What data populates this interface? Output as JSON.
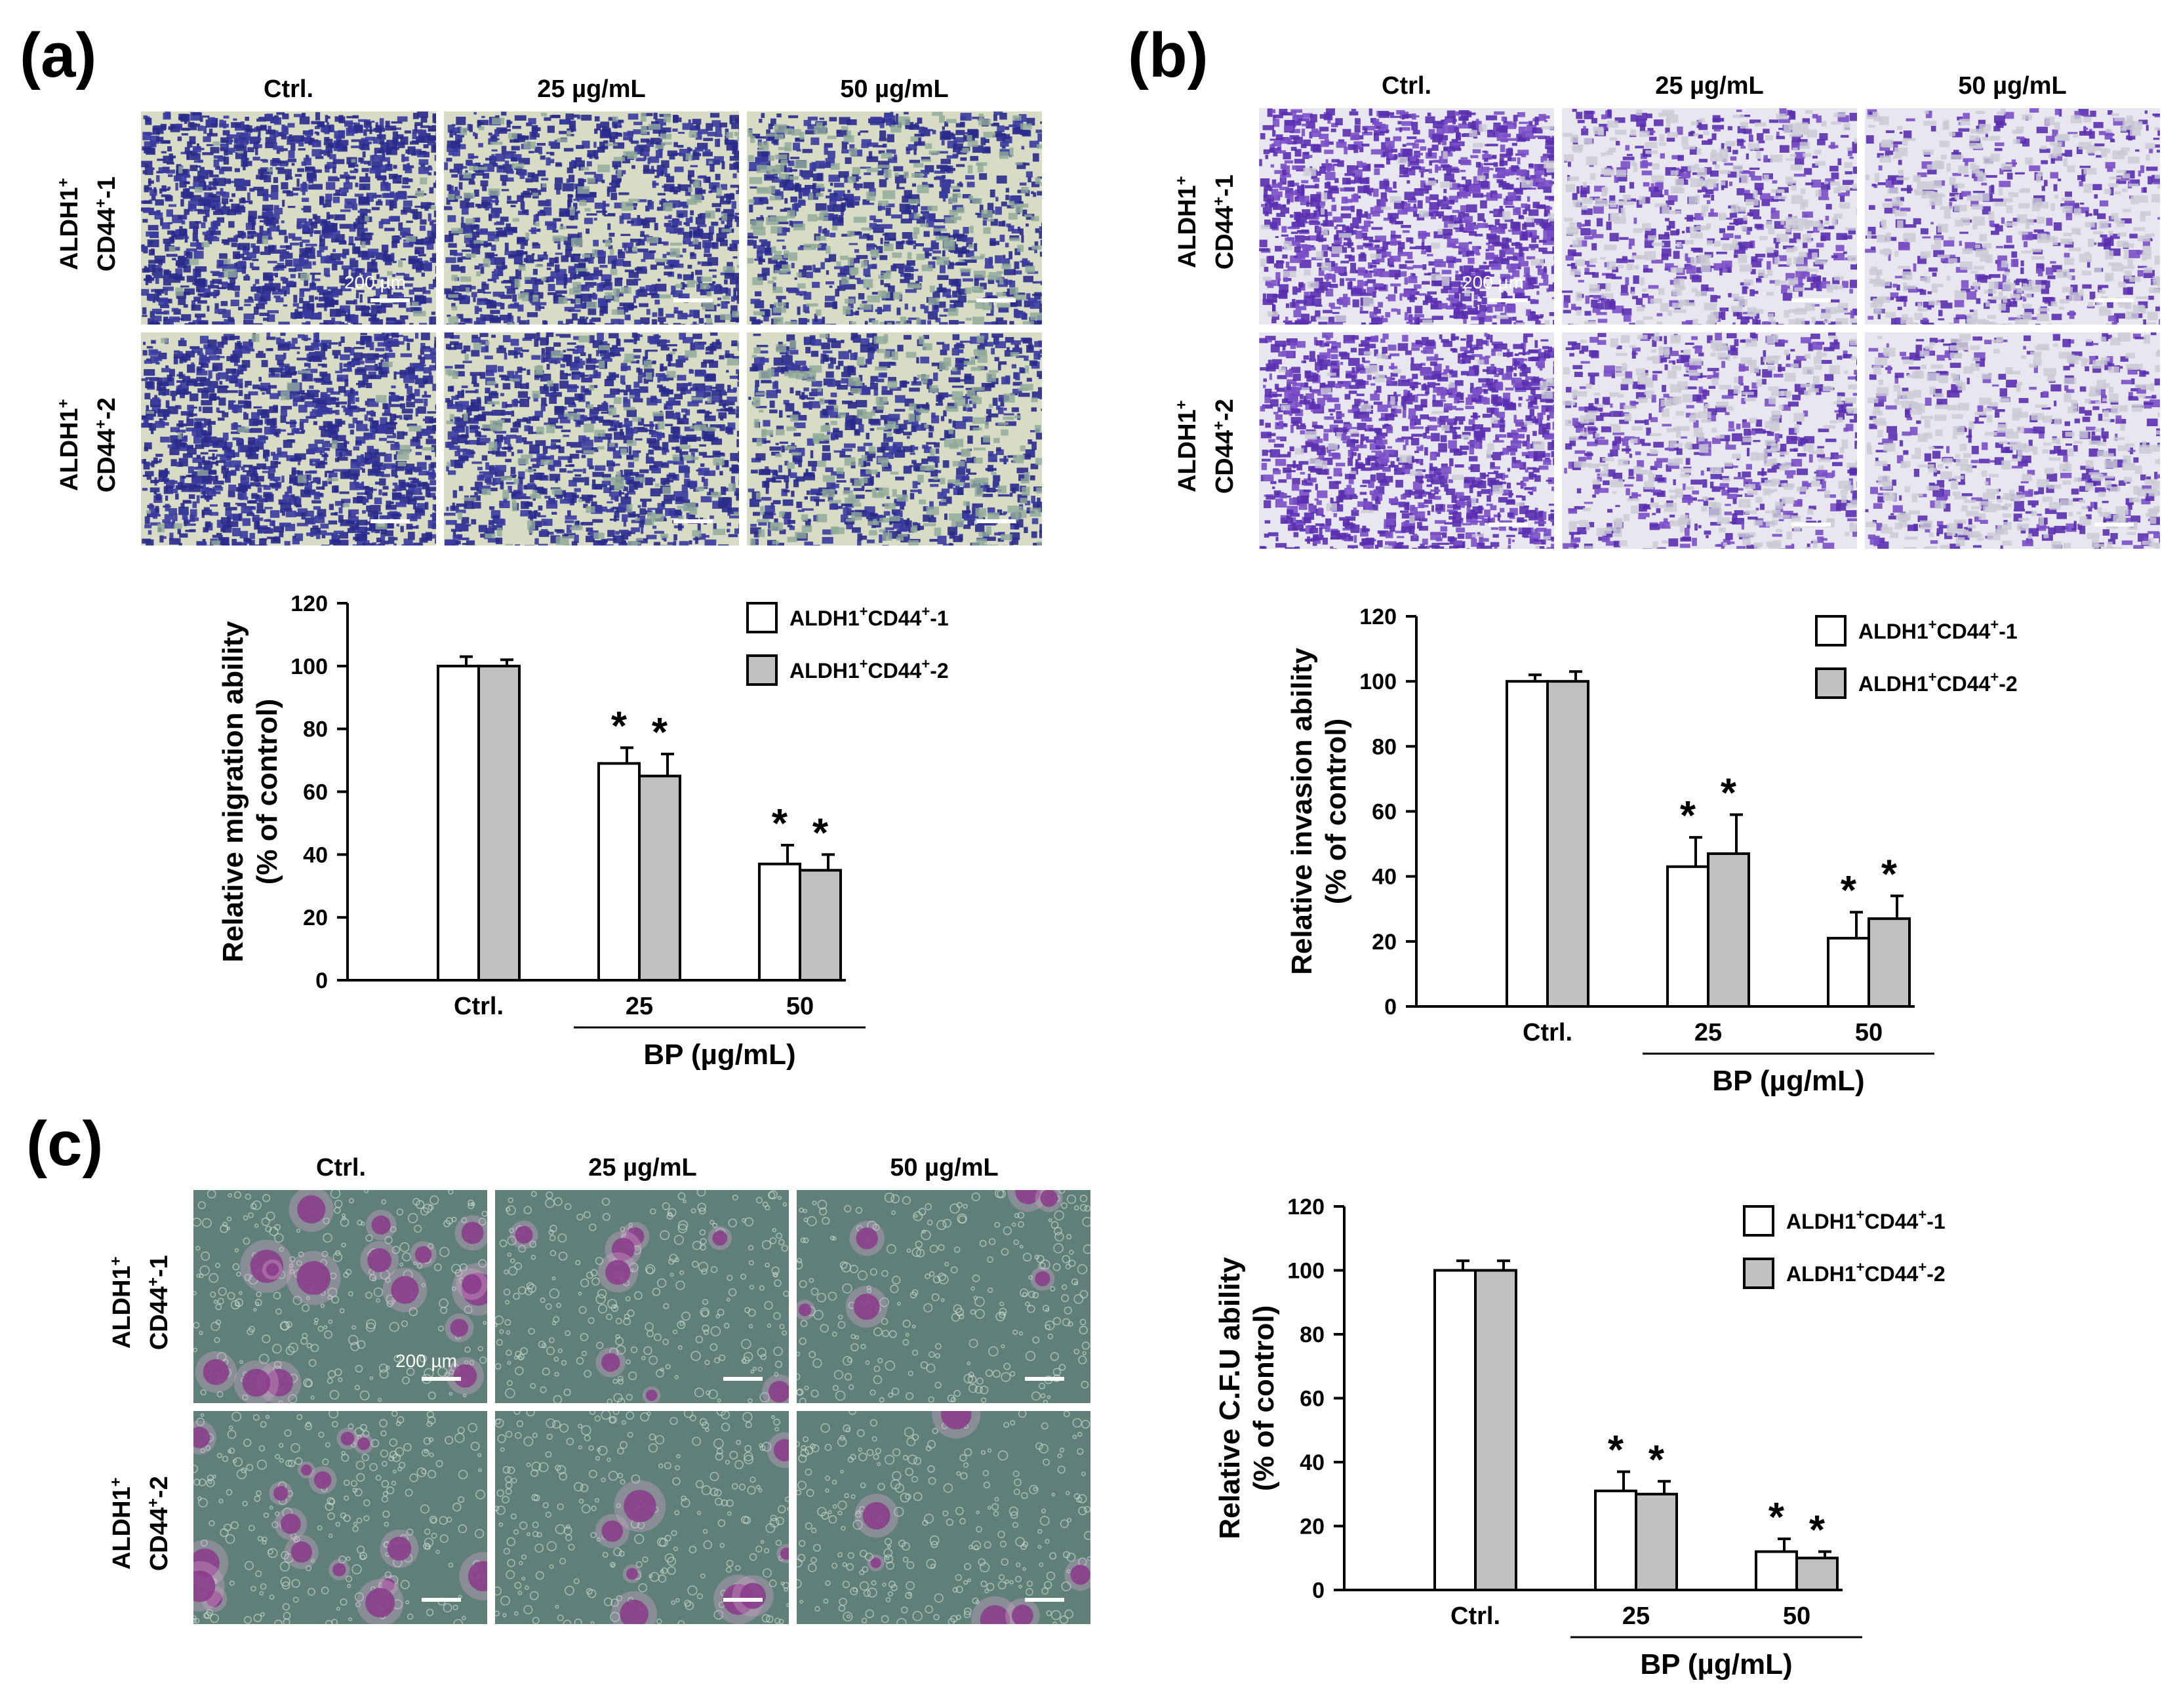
{
  "panels": [
    {
      "letter": "(a)",
      "columns": [
        "Ctrl.",
        "25  µg/mL",
        "50  µg/mL"
      ],
      "rows": [
        {
          "l1": "ALDH1",
          "l2": "CD44",
          "suffix": "-1"
        },
        {
          "l1": "ALDH1",
          "l2": "CD44",
          "suffix": "-2"
        }
      ],
      "scalebar": "200 µm",
      "stain": "crystal-violet migration",
      "colors": {
        "dense": "#2a2a8c",
        "mid": "#3a3aa0",
        "light": "#8fa99a",
        "bg": "#d8dcc4"
      }
    },
    {
      "letter": "(b)",
      "columns": [
        "Ctrl.",
        "25  µg/mL",
        "50  µg/mL"
      ],
      "rows": [
        {
          "l1": "ALDH1",
          "l2": "CD44",
          "suffix": "-1"
        },
        {
          "l1": "ALDH1",
          "l2": "CD44",
          "suffix": "-2"
        }
      ],
      "scalebar": "200 µm",
      "stain": "crystal-violet invasion",
      "colors": {
        "dense": "#5a2fb0",
        "mid": "#7a4fc8",
        "light": "#c9c9d4",
        "bg": "#e8e6ee"
      }
    },
    {
      "letter": "(c)",
      "columns": [
        "Ctrl.",
        "25  µg/mL",
        "50  µg/mL"
      ],
      "rows": [
        {
          "l1": "ALDH1",
          "l2": "CD44",
          "suffix": "-1"
        },
        {
          "l1": "ALDH1",
          "l2": "CD44",
          "suffix": "-2"
        }
      ],
      "scalebar": "200 µm",
      "stain": "colony formation",
      "colors": {
        "dense": "#8a3a8a",
        "mid": "#b07ab0",
        "light": "#6f8f86",
        "bg": "#5f7f78"
      }
    }
  ],
  "legend": [
    {
      "l1": "ALDH1",
      "l2": "CD44",
      "suffix": "-1",
      "color": "#ffffff"
    },
    {
      "l1": "ALDH1",
      "l2": "CD44",
      "suffix": "-2",
      "color": "#c0c0c0"
    }
  ],
  "chart_data": [
    {
      "type": "bar",
      "panel": "(a)",
      "categories": [
        "Ctrl.",
        "25",
        "50"
      ],
      "xlabel": "BP (µg/mL)",
      "ylabel": [
        "Relative migration ability",
        "(% of control)"
      ],
      "ylim": [
        0,
        120
      ],
      "yticks": [
        0,
        20,
        40,
        60,
        80,
        100,
        120
      ],
      "series": [
        {
          "name": "ALDH1+CD44+-1",
          "values": [
            100,
            69,
            37
          ],
          "errors": [
            3,
            5,
            6
          ],
          "color": "#ffffff"
        },
        {
          "name": "ALDH1+CD44+-2",
          "values": [
            100,
            65,
            35
          ],
          "errors": [
            2,
            7,
            5
          ],
          "color": "#c0c0c0"
        }
      ],
      "significance": [
        [
          false,
          true,
          true
        ],
        [
          false,
          true,
          true
        ]
      ],
      "marker": "*"
    },
    {
      "type": "bar",
      "panel": "(b)",
      "categories": [
        "Ctrl.",
        "25",
        "50"
      ],
      "xlabel": "BP (µg/mL)",
      "ylabel": [
        "Relative invasion ability",
        "(% of control)"
      ],
      "ylim": [
        0,
        120
      ],
      "yticks": [
        0,
        20,
        40,
        60,
        80,
        100,
        120
      ],
      "series": [
        {
          "name": "ALDH1+CD44+-1",
          "values": [
            100,
            43,
            21
          ],
          "errors": [
            2,
            9,
            8
          ],
          "color": "#ffffff"
        },
        {
          "name": "ALDH1+CD44+-2",
          "values": [
            100,
            47,
            27
          ],
          "errors": [
            3,
            12,
            7
          ],
          "color": "#c0c0c0"
        }
      ],
      "significance": [
        [
          false,
          true,
          true
        ],
        [
          false,
          true,
          true
        ]
      ],
      "marker": "*"
    },
    {
      "type": "bar",
      "panel": "(c)",
      "categories": [
        "Ctrl.",
        "25",
        "50"
      ],
      "xlabel": "BP (µg/mL)",
      "ylabel": [
        "Relative C.F.U ability",
        "(% of control)"
      ],
      "ylim": [
        0,
        120
      ],
      "yticks": [
        0,
        20,
        40,
        60,
        80,
        100,
        120
      ],
      "series": [
        {
          "name": "ALDH1+CD44+-1",
          "values": [
            100,
            31,
            12
          ],
          "errors": [
            3,
            6,
            4
          ],
          "color": "#ffffff"
        },
        {
          "name": "ALDH1+CD44+-2",
          "values": [
            100,
            30,
            10
          ],
          "errors": [
            3,
            4,
            2
          ],
          "color": "#c0c0c0"
        }
      ],
      "significance": [
        [
          false,
          true,
          true
        ],
        [
          false,
          true,
          true
        ]
      ],
      "marker": "*"
    }
  ]
}
